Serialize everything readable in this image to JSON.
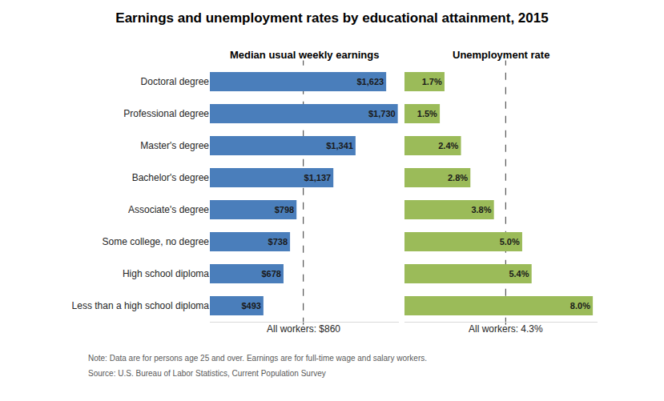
{
  "title": "Earnings and unemployment rates by educational attainment, 2015",
  "note": "Note: Data are for persons age 25 and over. Earnings are for full-time wage and salary workers.",
  "source": "Source: U.S. Bureau of Labor Statistics, Current Population Survey",
  "chart_data": [
    {
      "type": "bar",
      "title": "Median usual weekly earnings",
      "orientation": "horizontal",
      "categories": [
        "Doctoral degree",
        "Professional degree",
        "Master's degree",
        "Bachelor's degree",
        "Associate's degree",
        "Some college, no degree",
        "High school diploma",
        "Less than a high school diploma"
      ],
      "values": [
        1623,
        1730,
        1341,
        1137,
        798,
        738,
        678,
        493
      ],
      "value_labels": [
        "$1,623",
        "$1,730",
        "$1,341",
        "$1,137",
        "$798",
        "$738",
        "$678",
        "$493"
      ],
      "color": "#4a7ebb",
      "xlim": [
        0,
        1740
      ],
      "data_labels": true,
      "tick_labels": "y",
      "grid": false,
      "reference_line": {
        "value": 860,
        "label": "All workers: $860"
      }
    },
    {
      "type": "bar",
      "title": "Unemployment rate",
      "orientation": "horizontal",
      "categories": [
        "Doctoral degree",
        "Professional degree",
        "Master's degree",
        "Bachelor's degree",
        "Associate's degree",
        "Some college, no degree",
        "High school diploma",
        "Less than a high school diploma"
      ],
      "values": [
        1.7,
        1.5,
        2.4,
        2.8,
        3.8,
        5.0,
        5.4,
        8.0
      ],
      "value_labels": [
        "1.7%",
        "1.5%",
        "2.4%",
        "2.8%",
        "3.8%",
        "5.0%",
        "5.4%",
        "8.0%"
      ],
      "color": "#9bbb59",
      "xlim": [
        0,
        8.2
      ],
      "data_labels": true,
      "tick_labels": false,
      "grid": false,
      "reference_line": {
        "value": 4.3,
        "label": "All workers: 4.3%"
      }
    }
  ]
}
